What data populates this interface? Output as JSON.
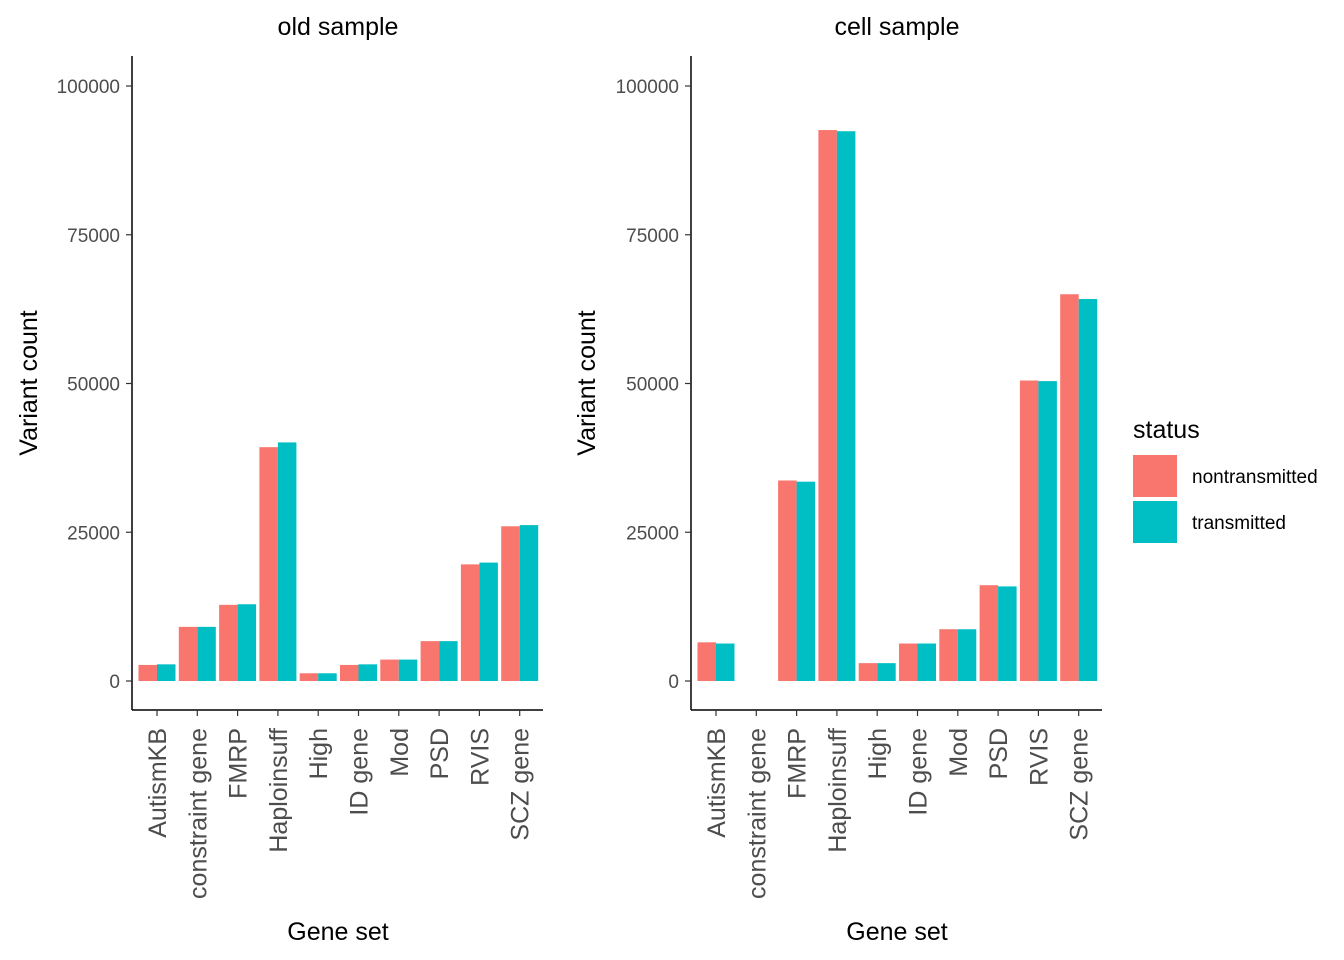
{
  "chart_data": [
    {
      "type": "bar",
      "title": "old sample",
      "xlabel": "Gene set",
      "ylabel": "Variant count",
      "ylim": [
        0,
        100000
      ],
      "yticks": [
        0,
        25000,
        50000,
        75000,
        100000
      ],
      "categories": [
        "AutismKB",
        "constraint gene",
        "FMRP",
        "Haploinsuff",
        "High",
        "ID gene",
        "Mod",
        "PSD",
        "RVIS",
        "SCZ gene"
      ],
      "series": [
        {
          "name": "nontransmitted",
          "values": [
            2700,
            9100,
            12800,
            39300,
            1300,
            2700,
            3600,
            6700,
            19600,
            26000
          ]
        },
        {
          "name": "transmitted",
          "values": [
            2800,
            9100,
            12900,
            40100,
            1300,
            2800,
            3600,
            6700,
            19900,
            26200
          ]
        }
      ],
      "grid": false
    },
    {
      "type": "bar",
      "title": "cell sample",
      "xlabel": "Gene set",
      "ylabel": "Variant count",
      "ylim": [
        0,
        100000
      ],
      "yticks": [
        0,
        25000,
        50000,
        75000,
        100000
      ],
      "categories": [
        "AutismKB",
        "constraint gene",
        "FMRP",
        "Haploinsuff",
        "High",
        "ID gene",
        "Mod",
        "PSD",
        "RVIS",
        "SCZ gene"
      ],
      "series": [
        {
          "name": "nontransmitted",
          "values": [
            6500,
            0,
            33700,
            92600,
            3000,
            6300,
            8700,
            16100,
            50500,
            65000
          ]
        },
        {
          "name": "transmitted",
          "values": [
            6300,
            0,
            33500,
            92400,
            3000,
            6300,
            8700,
            15900,
            50400,
            64200
          ]
        }
      ],
      "grid": false
    }
  ],
  "legend": {
    "title": "status",
    "position": "right",
    "items": [
      {
        "label": "nontransmitted",
        "color": "#F8766D"
      },
      {
        "label": "transmitted",
        "color": "#00BFC4"
      }
    ]
  },
  "colors": {
    "nontransmitted": "#F8766D",
    "transmitted": "#00BFC4",
    "axis": "#000000"
  }
}
